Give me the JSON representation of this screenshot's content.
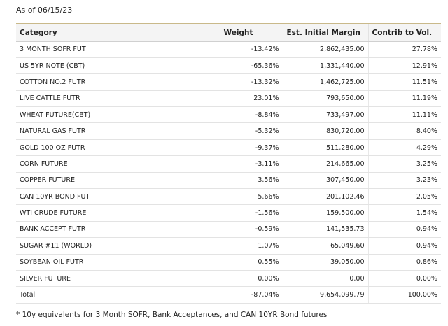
{
  "as_of": "As of 06/15/23",
  "table": {
    "headers": [
      "Category",
      "Weight",
      "Est. Initial Margin",
      "Contrib to Vol."
    ],
    "rows": [
      [
        "3 MONTH SOFR FUT",
        "-13.42%",
        "2,862,435.00",
        "27.78%"
      ],
      [
        "US 5YR NOTE (CBT)",
        "-65.36%",
        "1,331,440.00",
        "12.91%"
      ],
      [
        "COTTON NO.2 FUTR",
        "-13.32%",
        "1,462,725.00",
        "11.51%"
      ],
      [
        "LIVE CATTLE FUTR",
        "23.01%",
        "793,650.00",
        "11.19%"
      ],
      [
        "WHEAT FUTURE(CBT)",
        "-8.84%",
        "733,497.00",
        "11.11%"
      ],
      [
        "NATURAL GAS FUTR",
        "-5.32%",
        "830,720.00",
        "8.40%"
      ],
      [
        "GOLD 100 OZ FUTR",
        "-9.37%",
        "511,280.00",
        "4.29%"
      ],
      [
        "CORN FUTURE",
        "-3.11%",
        "214,665.00",
        "3.25%"
      ],
      [
        "COPPER FUTURE",
        "3.56%",
        "307,450.00",
        "3.23%"
      ],
      [
        "CAN 10YR BOND FUT",
        "5.66%",
        "201,102.46",
        "2.05%"
      ],
      [
        "WTI CRUDE FUTURE",
        "-1.56%",
        "159,500.00",
        "1.54%"
      ],
      [
        "BANK ACCEPT FUTR",
        "-0.59%",
        "141,535.73",
        "0.94%"
      ],
      [
        "SUGAR #11 (WORLD)",
        "1.07%",
        "65,049.60",
        "0.94%"
      ],
      [
        "SOYBEAN OIL FUTR",
        "0.55%",
        "39,050.00",
        "0.86%"
      ],
      [
        "SILVER FUTURE",
        "0.00%",
        "0.00",
        "0.00%"
      ],
      [
        "Total",
        "-87.04%",
        "9,654,099.79",
        "100.00%"
      ]
    ]
  },
  "footnote": "* 10y equivalents for 3 Month SOFR, Bank Acceptances, and CAN 10YR Bond futures"
}
